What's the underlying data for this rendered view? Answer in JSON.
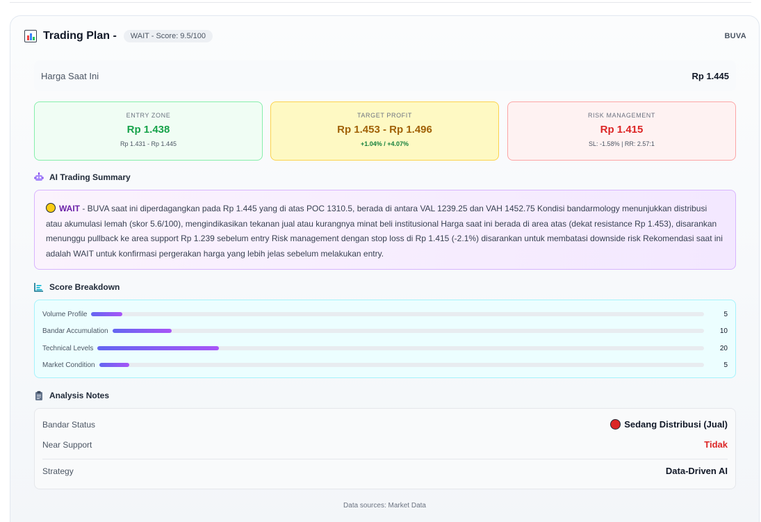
{
  "header": {
    "title": "Trading Plan -",
    "badge": "WAIT - Score: 9.5/100",
    "ticker": "BUVA"
  },
  "current_price": {
    "label": "Harga Saat Ini",
    "value": "Rp 1.445"
  },
  "entry_zone": {
    "label": "ENTRY ZONE",
    "value": "Rp 1.438",
    "range": "Rp 1.431 - Rp 1.445"
  },
  "target_profit": {
    "label": "TARGET PROFIT",
    "value": "Rp 1.453 - Rp 1.496",
    "pct": "+1.04% / +4.07%"
  },
  "risk_management": {
    "label": "RISK MANAGEMENT",
    "value": "Rp 1.415",
    "detail": "SL: -1.58% | RR: 2.57:1"
  },
  "ai_summary": {
    "title": "AI Trading Summary",
    "status": "WAIT",
    "text": " - BUVA saat ini diperdagangkan pada Rp 1.445 yang di atas POC 1310.5, berada di antara VAL 1239.25 dan VAH 1452.75 Kondisi bandarmology menunjukkan distribusi atau akumulasi lemah (skor 5.6/100), mengindikasikan tekanan jual atau kurangnya minat beli institusional Harga saat ini berada di area atas (dekat resistance Rp 1.453), disarankan menunggu pullback ke area support Rp 1.239 sebelum entry Risk management dengan stop loss di Rp 1.415 (-2.1%) disarankan untuk membatasi downside risk Rekomendasi saat ini adalah WAIT untuk konfirmasi pergerakan harga yang lebih jelas sebelum melakukan entry."
  },
  "score_breakdown": {
    "title": "Score Breakdown",
    "max": 100,
    "items": [
      {
        "label": "Volume Profile",
        "value": "5",
        "fraction": 0.05
      },
      {
        "label": "Bandar Accumulation",
        "value": "10",
        "fraction": 0.1
      },
      {
        "label": "Technical Levels",
        "value": "20",
        "fraction": 0.2
      },
      {
        "label": "Market Condition",
        "value": "5",
        "fraction": 0.05
      }
    ]
  },
  "analysis_notes": {
    "title": "Analysis Notes",
    "bandar_status_label": "Bandar Status",
    "bandar_status_value": "Sedang Distribusi (Jual)",
    "near_support_label": "Near Support",
    "near_support_value": "Tidak",
    "strategy_label": "Strategy",
    "strategy_value": "Data-Driven AI"
  },
  "footer": {
    "text": "Data sources: Market Data"
  },
  "colors": {
    "entry": "#16a34a",
    "target": "#a16207",
    "risk": "#dc2626",
    "accent": "#6b21a8"
  },
  "icons": {
    "title": "bar-chart-icon",
    "ai": "robot-icon",
    "breakdown": "chart-icon",
    "notes": "clipboard-icon"
  }
}
